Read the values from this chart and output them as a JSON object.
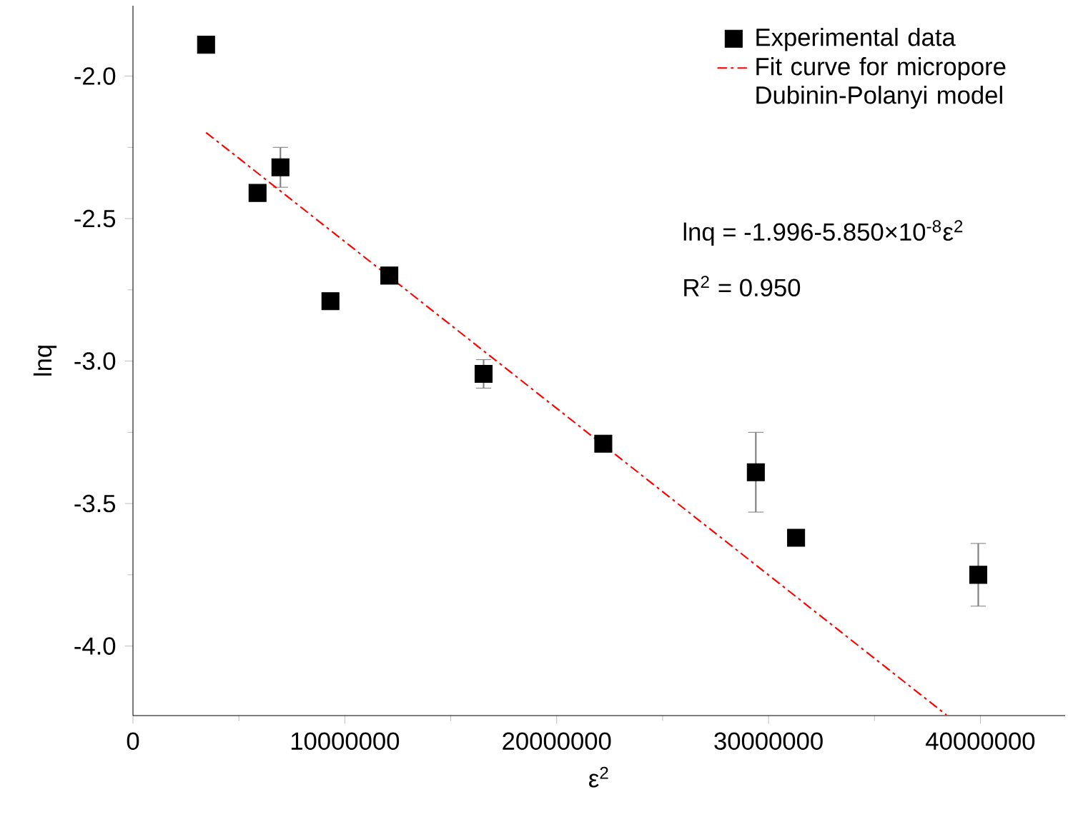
{
  "chart_data": {
    "type": "scatter",
    "xlabel": "ε$^{2}$",
    "ylabel": "lnq",
    "xlim": [
      0,
      44000000
    ],
    "ylim": [
      -4.244,
      -1.753
    ],
    "xticks": [
      0,
      10000000,
      20000000,
      30000000,
      40000000
    ],
    "yticks": [
      {
        "value": -4,
        "label": "-4.0"
      },
      {
        "value": -3.5,
        "label": "-3.5"
      },
      {
        "value": -3,
        "label": "-3.0"
      },
      {
        "value": -2.5,
        "label": "-2.5"
      },
      {
        "value": -2,
        "label": "-2.0"
      }
    ],
    "series": [
      {
        "name": "Experimental data",
        "color": "#000000",
        "marker": "square",
        "x": [
          3450000,
          5880000,
          6960000,
          9320000,
          12100000,
          16550000,
          22200000,
          29400000,
          31300000,
          39900000
        ],
        "values": [
          -1.89,
          -2.41,
          -2.32,
          -2.79,
          -2.7,
          -3.045,
          -3.29,
          -3.39,
          -3.62,
          -3.75
        ],
        "errors": [
          null,
          0.02,
          0.07,
          null,
          null,
          0.05,
          null,
          0.14,
          null,
          0.11
        ]
      },
      {
        "name": "Fit curve for micropore Dubinin-Polanyi model",
        "type": "line",
        "color": "#ff0000",
        "line_style": "dashed",
        "marker": "none",
        "x": [
          3450000,
          38400000
        ],
        "values": [
          -2.198,
          -4.242
        ]
      }
    ],
    "annotations": [
      "lnq = -1.996-5.850×10$^{-8}$ε$^{2}$",
      "R$^{2}$ = 0.950"
    ],
    "legend": "top right",
    "grid": false
  }
}
